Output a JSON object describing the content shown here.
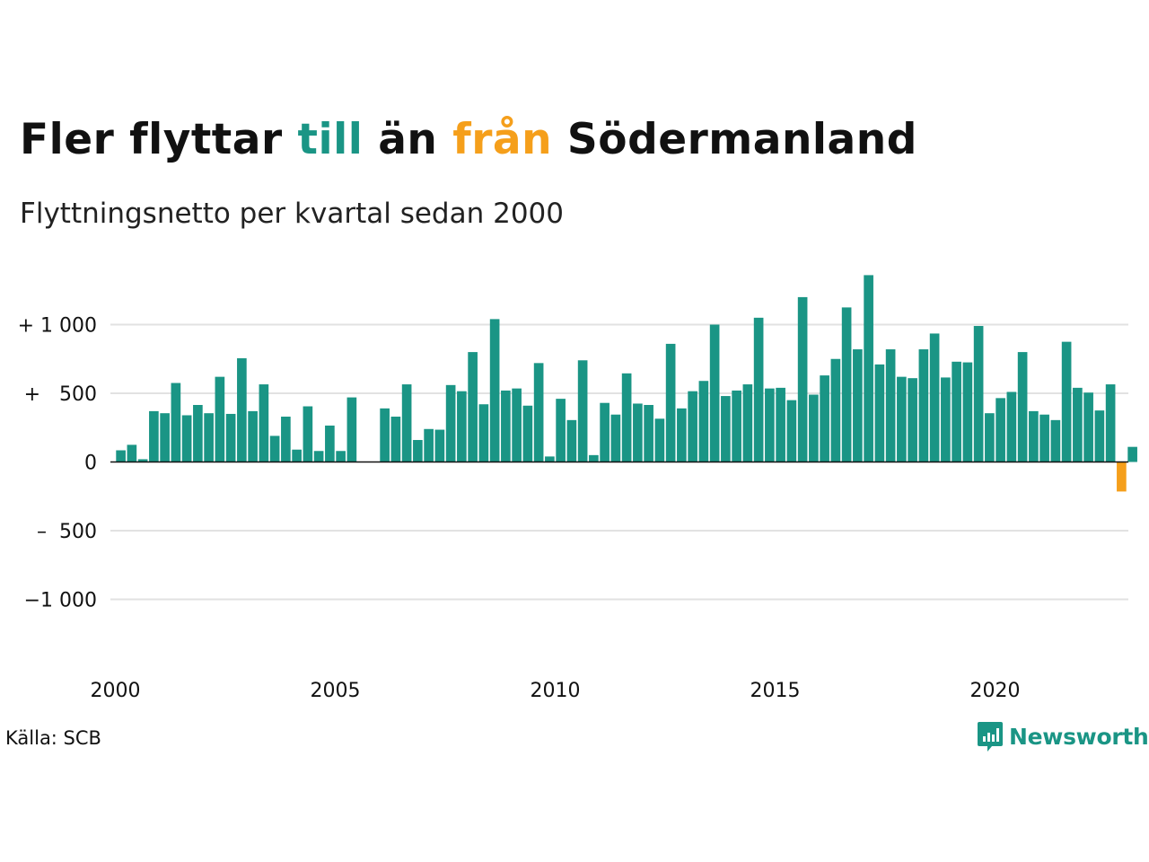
{
  "header": {
    "title_part1": "Fler flyttar ",
    "title_in": "till",
    "title_part2": " än ",
    "title_out": "från",
    "title_part3": " Södermanland",
    "subtitle": "Flyttningsnetto per kvartal sedan 2000"
  },
  "footer": {
    "source": "Källa: SCB",
    "brand": "Newsworthy"
  },
  "colors": {
    "positive": "#1a9585",
    "negative": "#f59f1b",
    "grid": "#e2e2e2"
  },
  "chart_data": {
    "type": "bar",
    "title": "Fler flyttar till än från Södermanland",
    "subtitle": "Flyttningsnetto per kvartal sedan 2000",
    "start_year": 2000,
    "quarters_per_year": 4,
    "ylim": [
      -1400,
      1400
    ],
    "y_ticks": [
      {
        "value": 1000,
        "label": "+ 1 000"
      },
      {
        "value": 500,
        "label": "+   500"
      },
      {
        "value": 0,
        "label": "0"
      },
      {
        "value": -500,
        "label": "–  500"
      },
      {
        "value": -1000,
        "label": "−1 000"
      }
    ],
    "x_ticks": [
      {
        "year": 2000,
        "label": "2000"
      },
      {
        "year": 2005,
        "label": "2005"
      },
      {
        "year": 2010,
        "label": "2010"
      },
      {
        "year": 2015,
        "label": "2015"
      },
      {
        "year": 2020,
        "label": "2020"
      }
    ],
    "values": [
      85,
      125,
      20,
      370,
      355,
      575,
      340,
      415,
      355,
      620,
      350,
      755,
      370,
      565,
      190,
      330,
      90,
      405,
      80,
      265,
      80,
      470,
      0,
      0,
      390,
      330,
      565,
      160,
      240,
      235,
      560,
      515,
      800,
      420,
      1040,
      520,
      535,
      410,
      720,
      40,
      460,
      305,
      740,
      50,
      430,
      345,
      645,
      425,
      415,
      315,
      860,
      390,
      515,
      590,
      1000,
      480,
      520,
      565,
      1050,
      535,
      540,
      450,
      1200,
      490,
      630,
      750,
      1125,
      820,
      1360,
      710,
      820,
      620,
      610,
      820,
      935,
      615,
      730,
      725,
      990,
      355,
      465,
      510,
      800,
      370,
      345,
      305,
      875,
      540,
      505,
      375,
      565,
      -215,
      110
    ]
  }
}
